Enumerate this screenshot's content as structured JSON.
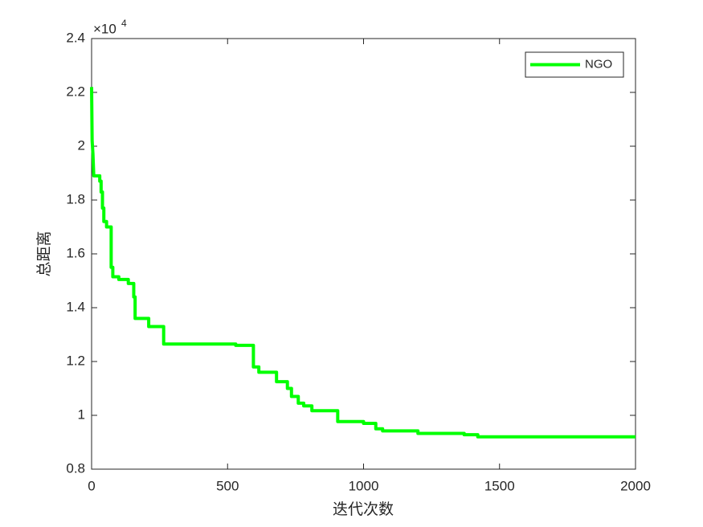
{
  "chart_data": {
    "type": "line",
    "xlabel": "迭代次数",
    "ylabel": "总距离",
    "y_multiplier": {
      "base": "×10",
      "exponent": "4"
    },
    "x": [
      0,
      2,
      5,
      8,
      30,
      30,
      35,
      35,
      40,
      40,
      45,
      45,
      55,
      55,
      72,
      72,
      78,
      78,
      100,
      100,
      135,
      135,
      155,
      155,
      160,
      160,
      210,
      210,
      265,
      265,
      530,
      530,
      595,
      595,
      615,
      615,
      680,
      680,
      720,
      720,
      735,
      735,
      760,
      760,
      780,
      780,
      810,
      810,
      905,
      905,
      1000,
      1000,
      1045,
      1045,
      1070,
      1070,
      1200,
      1200,
      1370,
      1370,
      1420,
      1420,
      2000
    ],
    "series": [
      {
        "name": "NGO",
        "color": "#00ff00",
        "values": [
          2.22,
          2.02,
          1.97,
          1.89,
          1.89,
          1.87,
          1.87,
          1.83,
          1.83,
          1.77,
          1.77,
          1.72,
          1.72,
          1.7,
          1.7,
          1.55,
          1.55,
          1.515,
          1.515,
          1.505,
          1.505,
          1.49,
          1.49,
          1.44,
          1.44,
          1.36,
          1.36,
          1.33,
          1.33,
          1.265,
          1.265,
          1.26,
          1.26,
          1.18,
          1.18,
          1.16,
          1.16,
          1.125,
          1.125,
          1.1,
          1.1,
          1.07,
          1.07,
          1.045,
          1.045,
          1.035,
          1.035,
          1.017,
          1.017,
          0.977,
          0.977,
          0.97,
          0.97,
          0.95,
          0.95,
          0.942,
          0.942,
          0.933,
          0.933,
          0.928,
          0.928,
          0.92,
          0.92
        ]
      }
    ],
    "xlim": [
      0,
      2000
    ],
    "xticks": [
      0,
      500,
      1000,
      1500,
      2000
    ],
    "ylim": [
      0.8,
      2.4
    ],
    "yticks": [
      0.8,
      1,
      1.2,
      1.4,
      1.6,
      1.8,
      2,
      2.2,
      2.4
    ],
    "legend_position": "upper right"
  }
}
